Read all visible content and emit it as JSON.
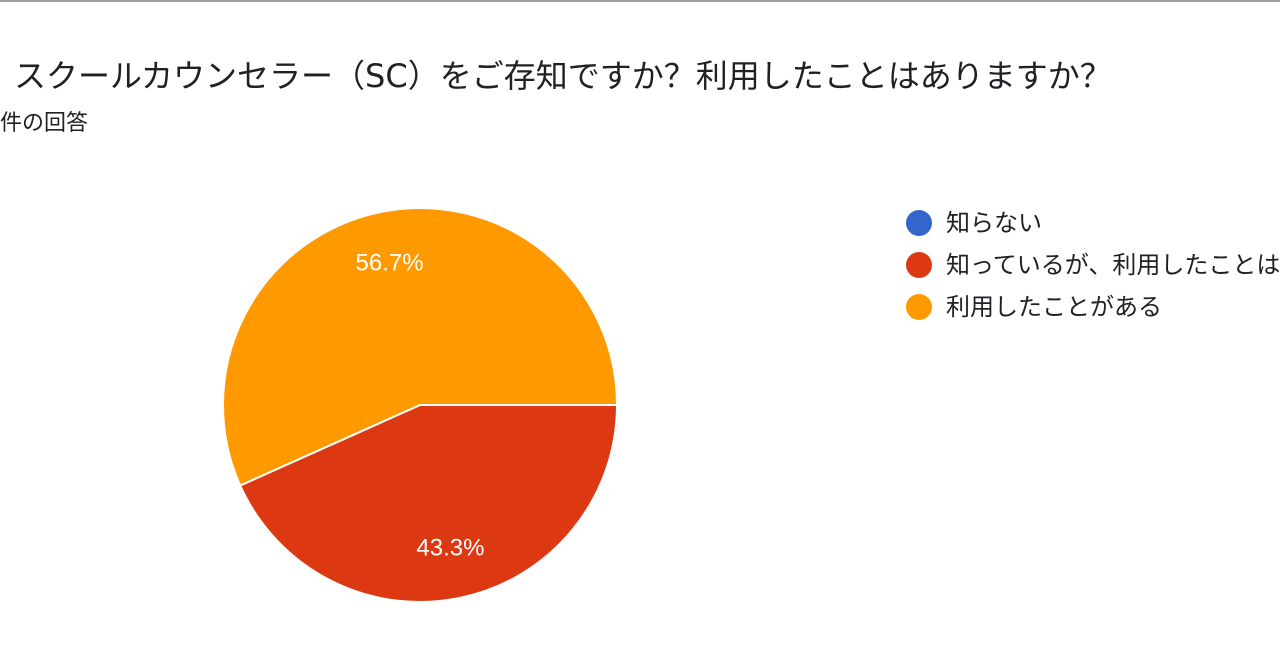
{
  "title": "スクールカウンセラー（SC）をご存知ですか？利用したことはありますか？",
  "subtitle": "件の回答",
  "chart_data": {
    "type": "pie",
    "title": "スクールカウンセラー（SC）をご存知ですか？利用したことはありますか？",
    "subtitle": "件の回答",
    "legend_position": "right",
    "series": [
      {
        "name": "知らない",
        "value": 0,
        "color": "#3366cc",
        "label": ""
      },
      {
        "name": "知っているが、利用したことはない",
        "value": 43.3,
        "color": "#dc3912",
        "label": "43.3%"
      },
      {
        "name": "利用したことがある",
        "value": 56.7,
        "color": "#ff9900",
        "label": "56.7%"
      }
    ]
  }
}
